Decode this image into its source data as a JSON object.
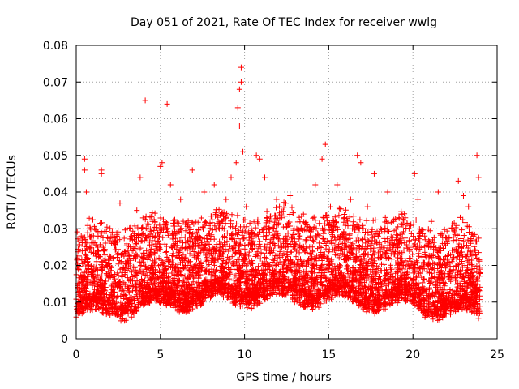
{
  "chart_data": {
    "type": "scatter",
    "title": "Day 051 of 2021, Rate Of TEC Index for receiver wwlg",
    "xlabel": "GPS time / hours",
    "ylabel": "ROTI / TECUs",
    "xlim": [
      0,
      25
    ],
    "ylim": [
      0,
      0.08
    ],
    "grid": true,
    "x_ticks": [
      0,
      5,
      10,
      15,
      20,
      25
    ],
    "x_tick_labels": [
      "0",
      "5",
      "10",
      "15",
      "20",
      "25"
    ],
    "y_ticks": [
      0,
      0.01,
      0.02,
      0.03,
      0.04,
      0.05,
      0.06,
      0.07,
      0.08
    ],
    "y_tick_labels": [
      "0",
      "0.01",
      "0.02",
      "0.03",
      "0.04",
      "0.05",
      "0.06",
      "0.07",
      "0.08"
    ],
    "marker": "+",
    "color": "#ff0000",
    "series": [
      {
        "name": "ROTI",
        "points": [
          [
            0.1,
            0.008
          ],
          [
            0.2,
            0.012
          ],
          [
            0.3,
            0.028
          ],
          [
            0.4,
            0.016
          ],
          [
            0.5,
            0.049
          ],
          [
            0.5,
            0.046
          ],
          [
            0.6,
            0.04
          ],
          [
            0.7,
            0.022
          ],
          [
            0.9,
            0.018
          ],
          [
            1.1,
            0.03
          ],
          [
            1.3,
            0.013
          ],
          [
            1.5,
            0.046
          ],
          [
            1.5,
            0.045
          ],
          [
            1.8,
            0.02
          ],
          [
            2.1,
            0.026
          ],
          [
            2.3,
            0.015
          ],
          [
            2.6,
            0.037
          ],
          [
            2.9,
            0.018
          ],
          [
            3.3,
            0.028
          ],
          [
            3.6,
            0.035
          ],
          [
            3.8,
            0.044
          ],
          [
            4.0,
            0.022
          ],
          [
            4.1,
            0.065
          ],
          [
            4.4,
            0.03
          ],
          [
            4.7,
            0.018
          ],
          [
            5.0,
            0.047
          ],
          [
            5.1,
            0.048
          ],
          [
            5.3,
            0.031
          ],
          [
            5.4,
            0.064
          ],
          [
            5.6,
            0.042
          ],
          [
            5.9,
            0.026
          ],
          [
            6.2,
            0.038
          ],
          [
            6.6,
            0.02
          ],
          [
            6.9,
            0.046
          ],
          [
            7.2,
            0.028
          ],
          [
            7.6,
            0.04
          ],
          [
            7.9,
            0.024
          ],
          [
            8.2,
            0.042
          ],
          [
            8.5,
            0.03
          ],
          [
            8.9,
            0.038
          ],
          [
            9.2,
            0.044
          ],
          [
            9.5,
            0.048
          ],
          [
            9.6,
            0.063
          ],
          [
            9.7,
            0.058
          ],
          [
            9.7,
            0.068
          ],
          [
            9.8,
            0.074
          ],
          [
            9.8,
            0.07
          ],
          [
            9.9,
            0.051
          ],
          [
            10.1,
            0.036
          ],
          [
            10.4,
            0.03
          ],
          [
            10.7,
            0.05
          ],
          [
            10.9,
            0.049
          ],
          [
            11.2,
            0.044
          ],
          [
            11.5,
            0.032
          ],
          [
            11.9,
            0.038
          ],
          [
            12.3,
            0.026
          ],
          [
            12.7,
            0.039
          ],
          [
            13.1,
            0.03
          ],
          [
            13.5,
            0.034
          ],
          [
            13.9,
            0.028
          ],
          [
            14.2,
            0.042
          ],
          [
            14.6,
            0.049
          ],
          [
            14.8,
            0.053
          ],
          [
            15.1,
            0.036
          ],
          [
            15.5,
            0.042
          ],
          [
            15.9,
            0.028
          ],
          [
            16.3,
            0.038
          ],
          [
            16.7,
            0.05
          ],
          [
            16.9,
            0.048
          ],
          [
            17.3,
            0.036
          ],
          [
            17.7,
            0.045
          ],
          [
            18.1,
            0.03
          ],
          [
            18.5,
            0.04
          ],
          [
            18.9,
            0.026
          ],
          [
            19.3,
            0.034
          ],
          [
            19.8,
            0.022
          ],
          [
            20.1,
            0.045
          ],
          [
            20.3,
            0.038
          ],
          [
            20.7,
            0.028
          ],
          [
            21.1,
            0.032
          ],
          [
            21.5,
            0.04
          ],
          [
            21.9,
            0.026
          ],
          [
            22.3,
            0.03
          ],
          [
            22.7,
            0.043
          ],
          [
            23.0,
            0.039
          ],
          [
            23.3,
            0.036
          ],
          [
            23.6,
            0.028
          ],
          [
            23.8,
            0.05
          ],
          [
            23.9,
            0.044
          ],
          [
            24.0,
            0.018
          ]
        ]
      }
    ]
  }
}
